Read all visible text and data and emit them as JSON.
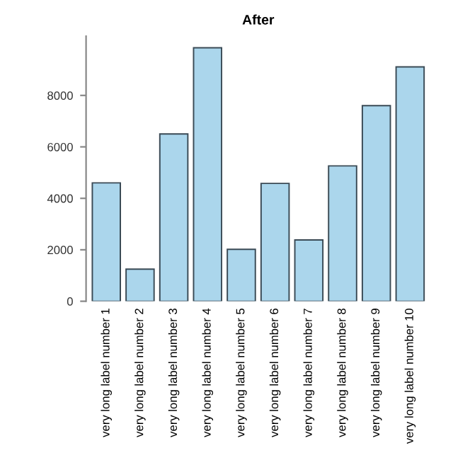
{
  "chart_data": {
    "type": "bar",
    "title": "After",
    "categories": [
      "very long label number 1",
      "very long label number 2",
      "very long label number 3",
      "very long label number 4",
      "very long label number 5",
      "very long label number 6",
      "very long label number 7",
      "very long label number 8",
      "very long label number 9",
      "very long label number 10"
    ],
    "values": [
      4600,
      1250,
      6500,
      9850,
      2020,
      4580,
      2380,
      5260,
      7600,
      9110
    ],
    "color": "#abd6ec",
    "ylim": [
      0,
      10300
    ],
    "yticks": [
      0,
      2000,
      4000,
      6000,
      8000
    ],
    "grid": false
  }
}
